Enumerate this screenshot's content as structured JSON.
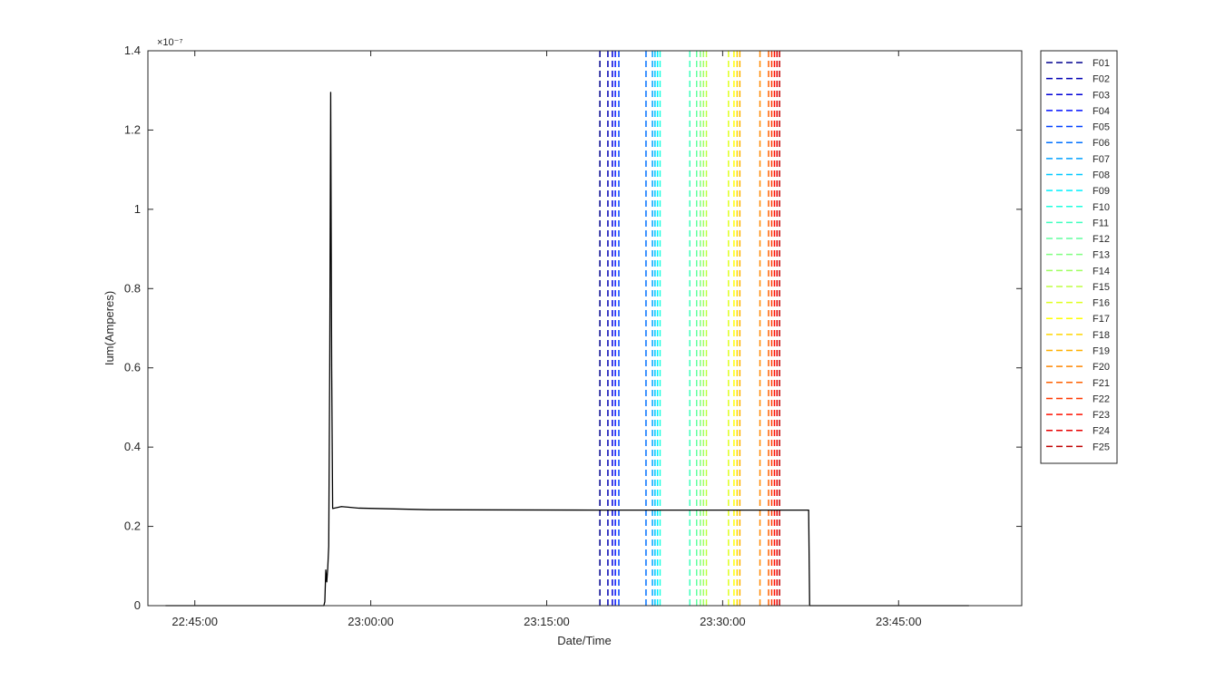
{
  "chart_data": {
    "type": "line",
    "xlabel": "Date/Time",
    "ylabel": "Ium(Amperes)",
    "y_exponent_label": "×10⁻⁷",
    "y_scale_factor": 1e-07,
    "xlim": [
      "22:41:00",
      "23:55:30"
    ],
    "ylim": [
      0,
      1.4
    ],
    "x_ticks": [
      "22:45:00",
      "23:00:00",
      "23:15:00",
      "23:30:00",
      "23:45:00"
    ],
    "y_ticks": [
      "0",
      "0.2",
      "0.4",
      "0.6",
      "0.8",
      "1",
      "1.2",
      "1.4"
    ],
    "grid": false,
    "legend_position": "outside-top-right",
    "series": [
      {
        "name": "",
        "color": "#000000",
        "points": [
          [
            "22:42:30",
            0.0
          ],
          [
            "22:51:00",
            0.0
          ],
          [
            "22:51:45",
            0.0
          ],
          [
            "22:56:00",
            0.0
          ],
          [
            "22:56:05",
            0.01
          ],
          [
            "22:56:10",
            0.09
          ],
          [
            "22:56:15",
            0.06
          ],
          [
            "22:56:20",
            0.095
          ],
          [
            "22:56:25",
            0.15
          ],
          [
            "22:56:30",
            0.6
          ],
          [
            "22:56:35",
            1.295
          ],
          [
            "22:56:40",
            0.6
          ],
          [
            "22:56:45",
            0.245
          ],
          [
            "22:57:30",
            0.25
          ],
          [
            "22:59:00",
            0.246
          ],
          [
            "23:05:00",
            0.242
          ],
          [
            "23:20:00",
            0.241
          ],
          [
            "23:37:20",
            0.241
          ],
          [
            "23:37:25",
            0.0
          ],
          [
            "23:51:00",
            0.0
          ]
        ]
      }
    ],
    "markers": [
      {
        "name": "F01",
        "time": "23:19:32",
        "color": "#00008f"
      },
      {
        "name": "F02",
        "time": "23:20:13",
        "color": "#0000b4"
      },
      {
        "name": "F03",
        "time": "23:20:36",
        "color": "#0000d8"
      },
      {
        "name": "F04",
        "time": "23:20:51",
        "color": "#0010ff"
      },
      {
        "name": "F05",
        "time": "23:21:09",
        "color": "#0040ff"
      },
      {
        "name": "F06",
        "time": "23:23:28",
        "color": "#0070ff"
      },
      {
        "name": "F07",
        "time": "23:24:01",
        "color": "#00a0ff"
      },
      {
        "name": "F08",
        "time": "23:24:14",
        "color": "#00c8ff"
      },
      {
        "name": "F09",
        "time": "23:24:27",
        "color": "#00f0ff"
      },
      {
        "name": "F10",
        "time": "23:24:40",
        "color": "#20ffdf"
      },
      {
        "name": "F11",
        "time": "23:27:12",
        "color": "#40ffbf"
      },
      {
        "name": "F12",
        "time": "23:27:47",
        "color": "#60ff9f"
      },
      {
        "name": "F13",
        "time": "23:28:06",
        "color": "#80ff80"
      },
      {
        "name": "F14",
        "time": "23:28:22",
        "color": "#9fff60"
      },
      {
        "name": "F15",
        "time": "23:28:37",
        "color": "#bfff40"
      },
      {
        "name": "F16",
        "time": "23:30:30",
        "color": "#dfff20"
      },
      {
        "name": "F17",
        "time": "23:30:58",
        "color": "#ffff00"
      },
      {
        "name": "F18",
        "time": "23:31:14",
        "color": "#ffd800"
      },
      {
        "name": "F19",
        "time": "23:31:28",
        "color": "#ffb000"
      },
      {
        "name": "F20",
        "time": "23:33:11",
        "color": "#ff8800"
      },
      {
        "name": "F21",
        "time": "23:33:55",
        "color": "#ff6000"
      },
      {
        "name": "F22",
        "time": "23:34:11",
        "color": "#ff3800"
      },
      {
        "name": "F23",
        "time": "23:34:25",
        "color": "#ff1000"
      },
      {
        "name": "F24",
        "time": "23:34:38",
        "color": "#e80000"
      },
      {
        "name": "F25",
        "time": "23:34:51",
        "color": "#c00000"
      }
    ]
  }
}
